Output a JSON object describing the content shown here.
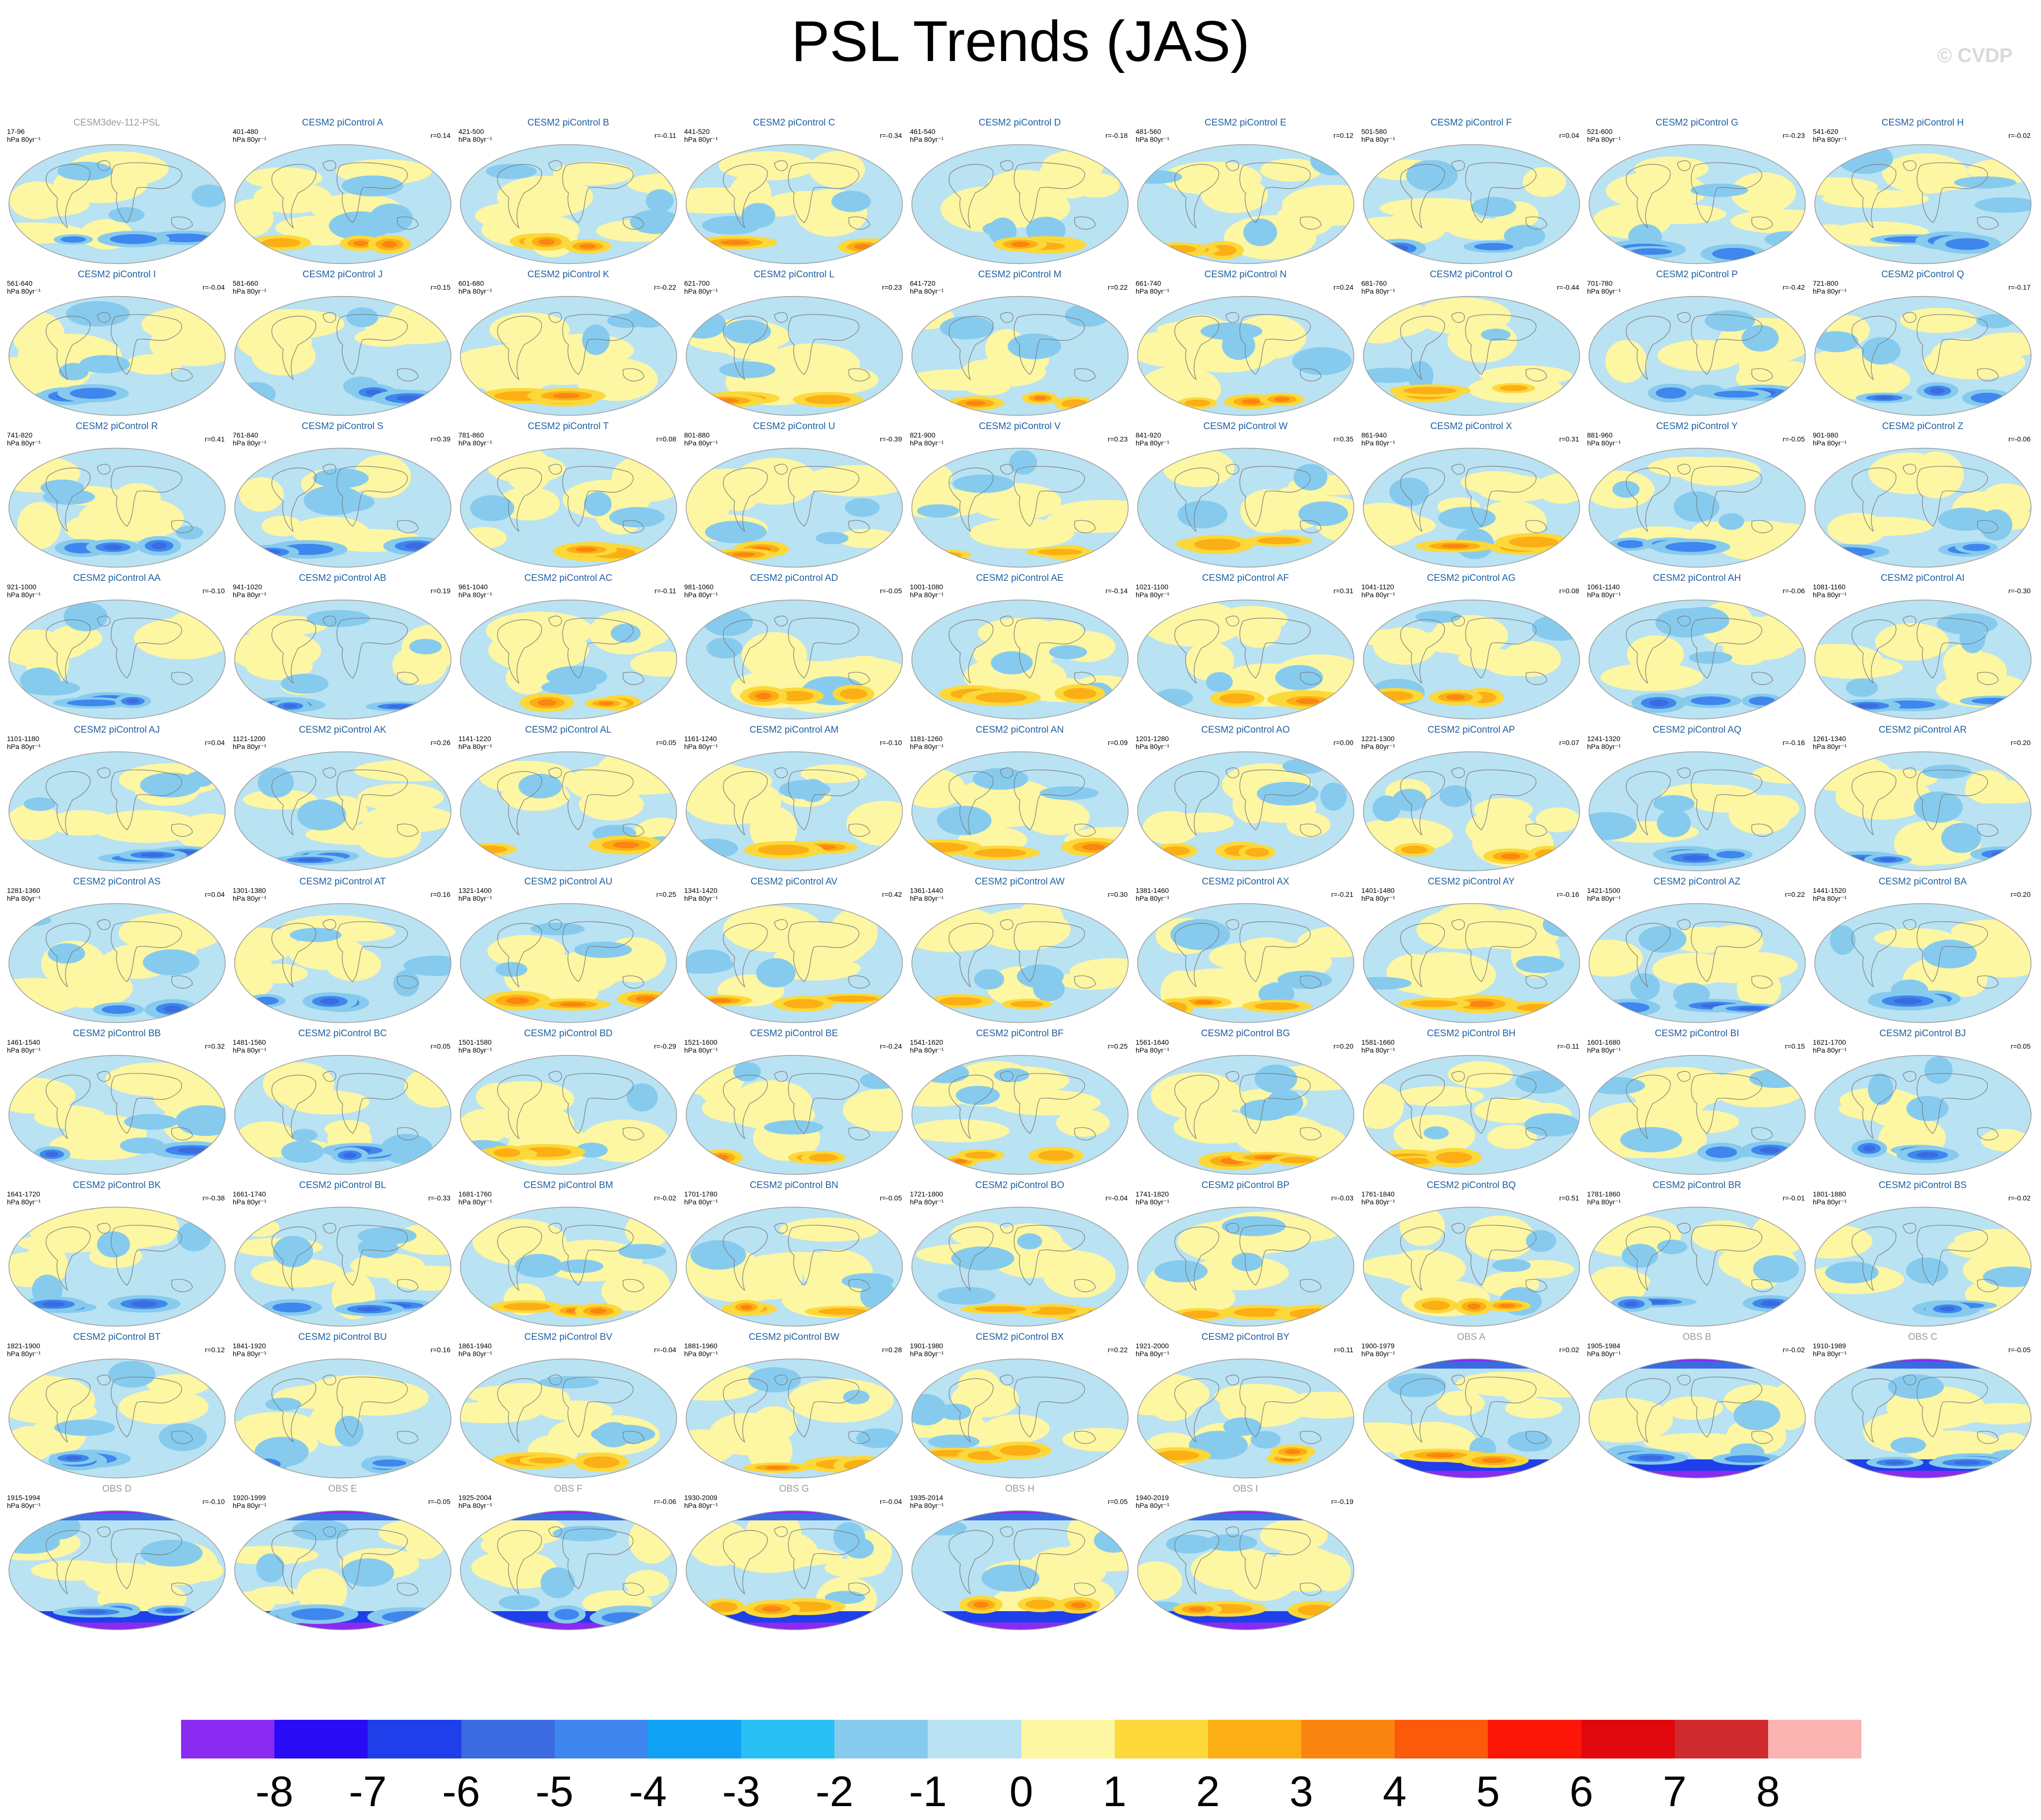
{
  "title": "PSL Trends (JAS)",
  "watermark": "© CVDP",
  "chart_data": {
    "type": "heatmap",
    "title": "PSL Trends (JAS)",
    "description_units": "hPa 80yr⁻¹",
    "colorbar": {
      "labels": [
        "-8",
        "-7",
        "-6",
        "-5",
        "-4",
        "-3",
        "-2",
        "-1",
        "0",
        "1",
        "2",
        "3",
        "4",
        "5",
        "6",
        "7",
        "8"
      ],
      "colors": [
        "#8b2bf2",
        "#2a0bf5",
        "#1f3fea",
        "#3b6be0",
        "#3f86ee",
        "#10a3f5",
        "#29c1f5",
        "#86cbee",
        "#b9e2f3",
        "#fdf6a2",
        "#fcd83a",
        "#fbaf14",
        "#fb8511",
        "#fc5a0b",
        "#fc1608",
        "#e0070d",
        "#cf2a2e",
        "#fcb4b2"
      ]
    },
    "panels": [
      {
        "name": "CESM3dev-112-PSL",
        "years": "17-96",
        "units": "hPa 80yr⁻¹",
        "r": "",
        "kind": "ref"
      },
      {
        "name": "CESM2 piControl A",
        "years": "401-480",
        "units": "hPa 80yr⁻¹",
        "r": "r=0.14",
        "kind": "model"
      },
      {
        "name": "CESM2 piControl B",
        "years": "421-500",
        "units": "hPa 80yr⁻¹",
        "r": "r=-0.11",
        "kind": "model"
      },
      {
        "name": "CESM2 piControl C",
        "years": "441-520",
        "units": "hPa 80yr⁻¹",
        "r": "r=-0.34",
        "kind": "model"
      },
      {
        "name": "CESM2 piControl D",
        "years": "461-540",
        "units": "hPa 80yr⁻¹",
        "r": "r=-0.18",
        "kind": "model"
      },
      {
        "name": "CESM2 piControl E",
        "years": "481-560",
        "units": "hPa 80yr⁻¹",
        "r": "r=0.12",
        "kind": "model"
      },
      {
        "name": "CESM2 piControl F",
        "years": "501-580",
        "units": "hPa 80yr⁻¹",
        "r": "r=0.04",
        "kind": "model"
      },
      {
        "name": "CESM2 piControl G",
        "years": "521-600",
        "units": "hPa 80yr⁻¹",
        "r": "r=-0.23",
        "kind": "model"
      },
      {
        "name": "CESM2 piControl H",
        "years": "541-620",
        "units": "hPa 80yr⁻¹",
        "r": "r=-0.02",
        "kind": "model"
      },
      {
        "name": "CESM2 piControl I",
        "years": "561-640",
        "units": "hPa 80yr⁻¹",
        "r": "r=-0.04",
        "kind": "model"
      },
      {
        "name": "CESM2 piControl J",
        "years": "581-660",
        "units": "hPa 80yr⁻¹",
        "r": "r=0.15",
        "kind": "model"
      },
      {
        "name": "CESM2 piControl K",
        "years": "601-680",
        "units": "hPa 80yr⁻¹",
        "r": "r=-0.22",
        "kind": "model"
      },
      {
        "name": "CESM2 piControl L",
        "years": "621-700",
        "units": "hPa 80yr⁻¹",
        "r": "r=0.23",
        "kind": "model"
      },
      {
        "name": "CESM2 piControl M",
        "years": "641-720",
        "units": "hPa 80yr⁻¹",
        "r": "r=0.22",
        "kind": "model"
      },
      {
        "name": "CESM2 piControl N",
        "years": "661-740",
        "units": "hPa 80yr⁻¹",
        "r": "r=0.24",
        "kind": "model"
      },
      {
        "name": "CESM2 piControl O",
        "years": "681-760",
        "units": "hPa 80yr⁻¹",
        "r": "r=-0.44",
        "kind": "model"
      },
      {
        "name": "CESM2 piControl P",
        "years": "701-780",
        "units": "hPa 80yr⁻¹",
        "r": "r=-0.42",
        "kind": "model"
      },
      {
        "name": "CESM2 piControl Q",
        "years": "721-800",
        "units": "hPa 80yr⁻¹",
        "r": "r=-0.17",
        "kind": "model"
      },
      {
        "name": "CESM2 piControl R",
        "years": "741-820",
        "units": "hPa 80yr⁻¹",
        "r": "r=0.41",
        "kind": "model"
      },
      {
        "name": "CESM2 piControl S",
        "years": "761-840",
        "units": "hPa 80yr⁻¹",
        "r": "r=0.39",
        "kind": "model"
      },
      {
        "name": "CESM2 piControl T",
        "years": "781-860",
        "units": "hPa 80yr⁻¹",
        "r": "r=0.08",
        "kind": "model"
      },
      {
        "name": "CESM2 piControl U",
        "years": "801-880",
        "units": "hPa 80yr⁻¹",
        "r": "r=-0.39",
        "kind": "model"
      },
      {
        "name": "CESM2 piControl V",
        "years": "821-900",
        "units": "hPa 80yr⁻¹",
        "r": "r=0.23",
        "kind": "model"
      },
      {
        "name": "CESM2 piControl W",
        "years": "841-920",
        "units": "hPa 80yr⁻¹",
        "r": "r=0.35",
        "kind": "model"
      },
      {
        "name": "CESM2 piControl X",
        "years": "861-940",
        "units": "hPa 80yr⁻¹",
        "r": "r=0.31",
        "kind": "model"
      },
      {
        "name": "CESM2 piControl Y",
        "years": "881-960",
        "units": "hPa 80yr⁻¹",
        "r": "r=-0.05",
        "kind": "model"
      },
      {
        "name": "CESM2 piControl Z",
        "years": "901-980",
        "units": "hPa 80yr⁻¹",
        "r": "r=-0.06",
        "kind": "model"
      },
      {
        "name": "CESM2 piControl AA",
        "years": "921-1000",
        "units": "hPa 80yr⁻¹",
        "r": "r=-0.10",
        "kind": "model"
      },
      {
        "name": "CESM2 piControl AB",
        "years": "941-1020",
        "units": "hPa 80yr⁻¹",
        "r": "r=0.19",
        "kind": "model"
      },
      {
        "name": "CESM2 piControl AC",
        "years": "961-1040",
        "units": "hPa 80yr⁻¹",
        "r": "r=-0.11",
        "kind": "model"
      },
      {
        "name": "CESM2 piControl AD",
        "years": "981-1060",
        "units": "hPa 80yr⁻¹",
        "r": "r=-0.05",
        "kind": "model"
      },
      {
        "name": "CESM2 piControl AE",
        "years": "1001-1080",
        "units": "hPa 80yr⁻¹",
        "r": "r=-0.14",
        "kind": "model"
      },
      {
        "name": "CESM2 piControl AF",
        "years": "1021-1100",
        "units": "hPa 80yr⁻¹",
        "r": "r=0.31",
        "kind": "model"
      },
      {
        "name": "CESM2 piControl AG",
        "years": "1041-1120",
        "units": "hPa 80yr⁻¹",
        "r": "r=0.08",
        "kind": "model"
      },
      {
        "name": "CESM2 piControl AH",
        "years": "1061-1140",
        "units": "hPa 80yr⁻¹",
        "r": "r=-0.06",
        "kind": "model"
      },
      {
        "name": "CESM2 piControl AI",
        "years": "1081-1160",
        "units": "hPa 80yr⁻¹",
        "r": "r=-0.30",
        "kind": "model"
      },
      {
        "name": "CESM2 piControl AJ",
        "years": "1101-1180",
        "units": "hPa 80yr⁻¹",
        "r": "r=0.04",
        "kind": "model"
      },
      {
        "name": "CESM2 piControl AK",
        "years": "1121-1200",
        "units": "hPa 80yr⁻¹",
        "r": "r=0.26",
        "kind": "model"
      },
      {
        "name": "CESM2 piControl AL",
        "years": "1141-1220",
        "units": "hPa 80yr⁻¹",
        "r": "r=0.05",
        "kind": "model"
      },
      {
        "name": "CESM2 piControl AM",
        "years": "1161-1240",
        "units": "hPa 80yr⁻¹",
        "r": "r=-0.10",
        "kind": "model"
      },
      {
        "name": "CESM2 piControl AN",
        "years": "1181-1260",
        "units": "hPa 80yr⁻¹",
        "r": "r=0.09",
        "kind": "model"
      },
      {
        "name": "CESM2 piControl AO",
        "years": "1201-1280",
        "units": "hPa 80yr⁻¹",
        "r": "r=0.00",
        "kind": "model"
      },
      {
        "name": "CESM2 piControl AP",
        "years": "1221-1300",
        "units": "hPa 80yr⁻¹",
        "r": "r=0.07",
        "kind": "model"
      },
      {
        "name": "CESM2 piControl AQ",
        "years": "1241-1320",
        "units": "hPa 80yr⁻¹",
        "r": "r=-0.16",
        "kind": "model"
      },
      {
        "name": "CESM2 piControl AR",
        "years": "1261-1340",
        "units": "hPa 80yr⁻¹",
        "r": "r=0.20",
        "kind": "model"
      },
      {
        "name": "CESM2 piControl AS",
        "years": "1281-1360",
        "units": "hPa 80yr⁻¹",
        "r": "r=0.04",
        "kind": "model"
      },
      {
        "name": "CESM2 piControl AT",
        "years": "1301-1380",
        "units": "hPa 80yr⁻¹",
        "r": "r=0.16",
        "kind": "model"
      },
      {
        "name": "CESM2 piControl AU",
        "years": "1321-1400",
        "units": "hPa 80yr⁻¹",
        "r": "r=0.25",
        "kind": "model"
      },
      {
        "name": "CESM2 piControl AV",
        "years": "1341-1420",
        "units": "hPa 80yr⁻¹",
        "r": "r=0.42",
        "kind": "model"
      },
      {
        "name": "CESM2 piControl AW",
        "years": "1361-1440",
        "units": "hPa 80yr⁻¹",
        "r": "r=0.30",
        "kind": "model"
      },
      {
        "name": "CESM2 piControl AX",
        "years": "1381-1460",
        "units": "hPa 80yr⁻¹",
        "r": "r=-0.21",
        "kind": "model"
      },
      {
        "name": "CESM2 piControl AY",
        "years": "1401-1480",
        "units": "hPa 80yr⁻¹",
        "r": "r=-0.16",
        "kind": "model"
      },
      {
        "name": "CESM2 piControl AZ",
        "years": "1421-1500",
        "units": "hPa 80yr⁻¹",
        "r": "r=0.22",
        "kind": "model"
      },
      {
        "name": "CESM2 piControl BA",
        "years": "1441-1520",
        "units": "hPa 80yr⁻¹",
        "r": "r=0.20",
        "kind": "model"
      },
      {
        "name": "CESM2 piControl BB",
        "years": "1461-1540",
        "units": "hPa 80yr⁻¹",
        "r": "r=0.32",
        "kind": "model"
      },
      {
        "name": "CESM2 piControl BC",
        "years": "1481-1560",
        "units": "hPa 80yr⁻¹",
        "r": "r=0.05",
        "kind": "model"
      },
      {
        "name": "CESM2 piControl BD",
        "years": "1501-1580",
        "units": "hPa 80yr⁻¹",
        "r": "r=-0.29",
        "kind": "model"
      },
      {
        "name": "CESM2 piControl BE",
        "years": "1521-1600",
        "units": "hPa 80yr⁻¹",
        "r": "r=-0.24",
        "kind": "model"
      },
      {
        "name": "CESM2 piControl BF",
        "years": "1541-1620",
        "units": "hPa 80yr⁻¹",
        "r": "r=0.25",
        "kind": "model"
      },
      {
        "name": "CESM2 piControl BG",
        "years": "1561-1640",
        "units": "hPa 80yr⁻¹",
        "r": "r=0.20",
        "kind": "model"
      },
      {
        "name": "CESM2 piControl BH",
        "years": "1581-1660",
        "units": "hPa 80yr⁻¹",
        "r": "r=-0.11",
        "kind": "model"
      },
      {
        "name": "CESM2 piControl BI",
        "years": "1601-1680",
        "units": "hPa 80yr⁻¹",
        "r": "r=0.15",
        "kind": "model"
      },
      {
        "name": "CESM2 piControl BJ",
        "years": "1621-1700",
        "units": "hPa 80yr⁻¹",
        "r": "r=0.05",
        "kind": "model"
      },
      {
        "name": "CESM2 piControl BK",
        "years": "1641-1720",
        "units": "hPa 80yr⁻¹",
        "r": "r=-0.38",
        "kind": "model"
      },
      {
        "name": "CESM2 piControl BL",
        "years": "1661-1740",
        "units": "hPa 80yr⁻¹",
        "r": "r=-0.33",
        "kind": "model"
      },
      {
        "name": "CESM2 piControl BM",
        "years": "1681-1760",
        "units": "hPa 80yr⁻¹",
        "r": "r=-0.02",
        "kind": "model"
      },
      {
        "name": "CESM2 piControl BN",
        "years": "1701-1780",
        "units": "hPa 80yr⁻¹",
        "r": "r=-0.05",
        "kind": "model"
      },
      {
        "name": "CESM2 piControl BO",
        "years": "1721-1800",
        "units": "hPa 80yr⁻¹",
        "r": "r=-0.04",
        "kind": "model"
      },
      {
        "name": "CESM2 piControl BP",
        "years": "1741-1820",
        "units": "hPa 80yr⁻¹",
        "r": "r=-0.03",
        "kind": "model"
      },
      {
        "name": "CESM2 piControl BQ",
        "years": "1761-1840",
        "units": "hPa 80yr⁻¹",
        "r": "r=0.51",
        "kind": "model"
      },
      {
        "name": "CESM2 piControl BR",
        "years": "1781-1860",
        "units": "hPa 80yr⁻¹",
        "r": "r=-0.01",
        "kind": "model"
      },
      {
        "name": "CESM2 piControl BS",
        "years": "1801-1880",
        "units": "hPa 80yr⁻¹",
        "r": "r=-0.02",
        "kind": "model"
      },
      {
        "name": "CESM2 piControl BT",
        "years": "1821-1900",
        "units": "hPa 80yr⁻¹",
        "r": "r=0.12",
        "kind": "model"
      },
      {
        "name": "CESM2 piControl BU",
        "years": "1841-1920",
        "units": "hPa 80yr⁻¹",
        "r": "r=0.16",
        "kind": "model"
      },
      {
        "name": "CESM2 piControl BV",
        "years": "1861-1940",
        "units": "hPa 80yr⁻¹",
        "r": "r=-0.04",
        "kind": "model"
      },
      {
        "name": "CESM2 piControl BW",
        "years": "1881-1960",
        "units": "hPa 80yr⁻¹",
        "r": "r=0.28",
        "kind": "model"
      },
      {
        "name": "CESM2 piControl BX",
        "years": "1901-1980",
        "units": "hPa 80yr⁻¹",
        "r": "r=0.22",
        "kind": "model"
      },
      {
        "name": "CESM2 piControl BY",
        "years": "1921-2000",
        "units": "hPa 80yr⁻¹",
        "r": "r=0.11",
        "kind": "model"
      },
      {
        "name": "OBS A",
        "years": "1900-1979",
        "units": "hPa 80yr⁻¹",
        "r": "r=0.02",
        "kind": "obs"
      },
      {
        "name": "OBS B",
        "years": "1905-1984",
        "units": "hPa 80yr⁻¹",
        "r": "r=-0.02",
        "kind": "obs"
      },
      {
        "name": "OBS C",
        "years": "1910-1989",
        "units": "hPa 80yr⁻¹",
        "r": "r=-0.05",
        "kind": "obs"
      },
      {
        "name": "OBS D",
        "years": "1915-1994",
        "units": "hPa 80yr⁻¹",
        "r": "r=-0.10",
        "kind": "obs"
      },
      {
        "name": "OBS E",
        "years": "1920-1999",
        "units": "hPa 80yr⁻¹",
        "r": "r=-0.05",
        "kind": "obs"
      },
      {
        "name": "OBS F",
        "years": "1925-2004",
        "units": "hPa 80yr⁻¹",
        "r": "r=-0.06",
        "kind": "obs"
      },
      {
        "name": "OBS G",
        "years": "1930-2009",
        "units": "hPa 80yr⁻¹",
        "r": "r=-0.04",
        "kind": "obs"
      },
      {
        "name": "OBS H",
        "years": "1935-2014",
        "units": "hPa 80yr⁻¹",
        "r": "r=0.05",
        "kind": "obs"
      },
      {
        "name": "OBS I",
        "years": "1940-2019",
        "units": "hPa 80yr⁻¹",
        "r": "r=-0.19",
        "kind": "obs"
      }
    ]
  }
}
